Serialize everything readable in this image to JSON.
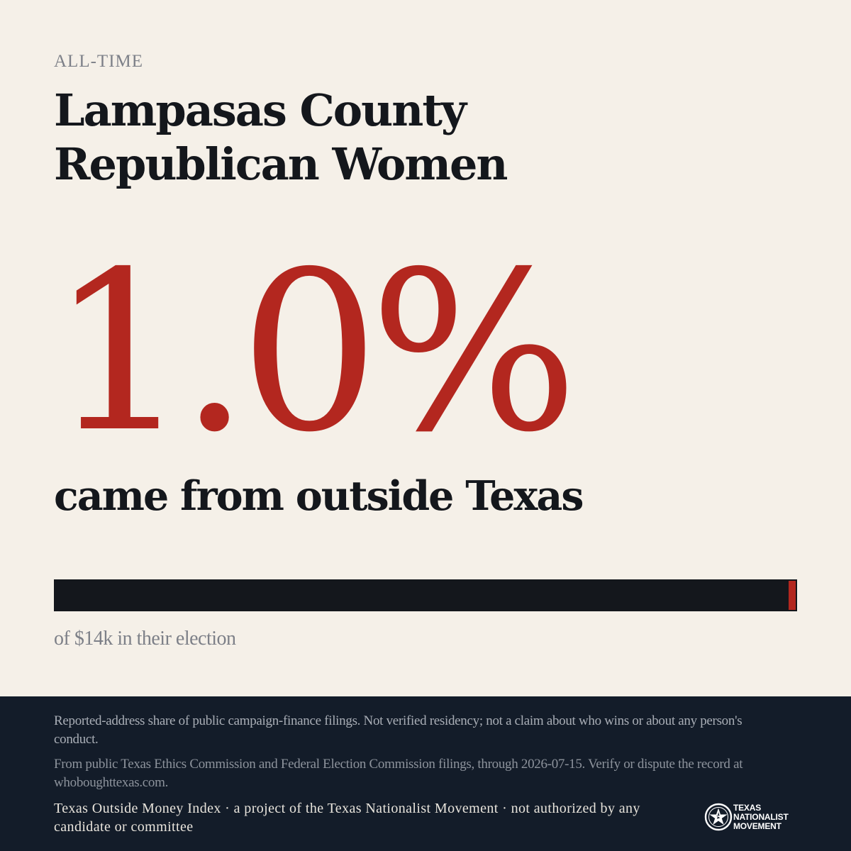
{
  "header": {
    "kicker": "ALL-TIME",
    "title": "Lampasas County Republican Women"
  },
  "stat": {
    "value": "1.0%",
    "caption": "came from outside Texas"
  },
  "bar": {
    "outside_share_percent": 1.0,
    "note": "of $14k in their election",
    "track_color": "#14171c",
    "fill_color": "#b3271f"
  },
  "footer": {
    "disclaimer": "Reported-address share of public campaign-finance filings. Not verified residency; not a claim about who wins or about any person's conduct.",
    "source": "From public Texas Ethics Commission and Federal Election Commission filings, through 2026-07-15. Verify or dispute the record at whoboughttexas.com.",
    "project": "Texas Outside Money Index · a project of the Texas Nationalist Movement · not authorized by any candidate or committee",
    "logo": {
      "icon": "tnm-star-seal-icon",
      "line1": "TEXAS",
      "line2": "NATIONALIST",
      "line3": "MOVEMENT"
    }
  },
  "colors": {
    "background": "#f5f0e8",
    "accent": "#b3271f",
    "ink": "#14171c",
    "footer_bg": "#131c29"
  }
}
